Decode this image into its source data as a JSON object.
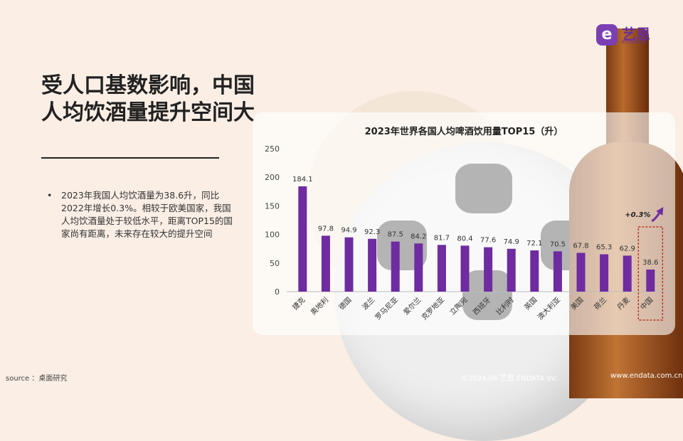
{
  "brand": {
    "mark": "e",
    "name": "艺恩",
    "sub": "endata",
    "color": "#6a2f9e"
  },
  "headline": "受人口基数影响，中国人均饮酒量提升空间大",
  "bullet": {
    "dot": "•",
    "text": "2023年我国人均饮酒量为38.6升，同比2022年增长0.3%。相较于欧美国家，我国人均饮酒量处于较低水平，距离TOP15的国家尚有距离，未来存在较大的提升空间"
  },
  "chart_data": {
    "type": "bar",
    "title": "2023年世界各国人均啤酒饮用量TOP15（升）",
    "categories": [
      "捷克",
      "奥地利",
      "德国",
      "波兰",
      "罗马尼亚",
      "爱尔兰",
      "克罗地亚",
      "立陶宛",
      "西班牙",
      "比利时",
      "英国",
      "澳大利亚",
      "美国",
      "荷兰",
      "丹麦",
      "中国"
    ],
    "values": [
      184.1,
      97.8,
      94.9,
      92.3,
      87.5,
      84.2,
      81.7,
      80.4,
      77.6,
      74.9,
      72.1,
      70.5,
      67.8,
      65.3,
      62.9,
      38.6
    ],
    "data_labels": [
      "184.1",
      "97.8",
      "94.9",
      "92.3",
      "87.5",
      "84.2",
      "81.7",
      "80.4",
      "77.6",
      "74.9",
      "72.1",
      "70.5",
      "67.8",
      "65.3",
      "62.9",
      "38.6"
    ],
    "ylim": [
      0,
      250
    ],
    "yticks": [
      "0",
      "50",
      "100",
      "150",
      "200",
      "250"
    ],
    "grid": false,
    "bar_color": "#6e2ca0",
    "highlight": {
      "category": "中国",
      "annotation": "+0.3%",
      "color": "#c0392b"
    }
  },
  "footer": {
    "source": "source ：桌面研究",
    "copyright": "©2024.06  艺恩 ENDATA Inc.",
    "website": "www.endata.com.cn"
  }
}
